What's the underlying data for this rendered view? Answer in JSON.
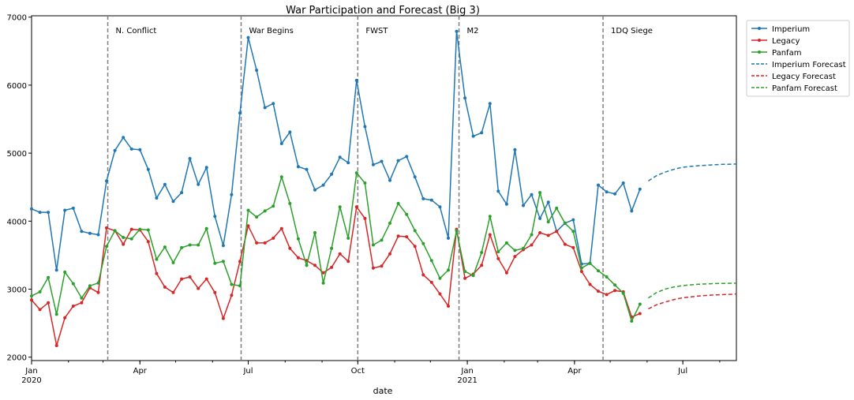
{
  "chart_data": {
    "type": "line",
    "title": "War Participation and Forecast (Big 3)",
    "xlabel": "date",
    "ylabel": "",
    "ylim": [
      1950,
      7020
    ],
    "x_range": [
      "2020-01-01",
      "2021-08-15"
    ],
    "x_ticks": [
      {
        "date": "2020-01-01",
        "label": "Jan",
        "sublabel": "2020"
      },
      {
        "date": "2020-04-01",
        "label": "Apr",
        "sublabel": ""
      },
      {
        "date": "2020-07-01",
        "label": "Jul",
        "sublabel": ""
      },
      {
        "date": "2020-10-01",
        "label": "Oct",
        "sublabel": ""
      },
      {
        "date": "2021-01-01",
        "label": "Jan",
        "sublabel": "2021"
      },
      {
        "date": "2021-04-01",
        "label": "Apr",
        "sublabel": ""
      },
      {
        "date": "2021-07-01",
        "label": "Jul",
        "sublabel": ""
      }
    ],
    "y_ticks": [
      2000,
      3000,
      4000,
      5000,
      6000,
      7000
    ],
    "grid": false,
    "legend_position": "outside-top-right",
    "annotations": [
      {
        "date": "2020-03-05",
        "label": "N. Conflict"
      },
      {
        "date": "2020-06-25",
        "label": "War Begins"
      },
      {
        "date": "2020-10-01",
        "label": "FWST"
      },
      {
        "date": "2020-12-25",
        "label": "M2"
      },
      {
        "date": "2021-04-25",
        "label": "1DQ Siege"
      }
    ],
    "dates": [
      "2020-01-01",
      "2020-01-08",
      "2020-01-15",
      "2020-01-22",
      "2020-01-29",
      "2020-02-05",
      "2020-02-12",
      "2020-02-19",
      "2020-02-26",
      "2020-03-04",
      "2020-03-11",
      "2020-03-18",
      "2020-03-25",
      "2020-04-01",
      "2020-04-08",
      "2020-04-15",
      "2020-04-22",
      "2020-04-29",
      "2020-05-06",
      "2020-05-13",
      "2020-05-20",
      "2020-05-27",
      "2020-06-03",
      "2020-06-10",
      "2020-06-17",
      "2020-06-24",
      "2020-07-01",
      "2020-07-08",
      "2020-07-15",
      "2020-07-22",
      "2020-07-29",
      "2020-08-05",
      "2020-08-12",
      "2020-08-19",
      "2020-08-26",
      "2020-09-02",
      "2020-09-09",
      "2020-09-16",
      "2020-09-23",
      "2020-09-30",
      "2020-10-07",
      "2020-10-14",
      "2020-10-21",
      "2020-10-28",
      "2020-11-04",
      "2020-11-11",
      "2020-11-18",
      "2020-11-25",
      "2020-12-02",
      "2020-12-09",
      "2020-12-16",
      "2020-12-23",
      "2020-12-30",
      "2021-01-06",
      "2021-01-13",
      "2021-01-20",
      "2021-01-27",
      "2021-02-03",
      "2021-02-10",
      "2021-02-17",
      "2021-02-24",
      "2021-03-03",
      "2021-03-10",
      "2021-03-17",
      "2021-03-24",
      "2021-03-31",
      "2021-04-07",
      "2021-04-14",
      "2021-04-21",
      "2021-04-28",
      "2021-05-05",
      "2021-05-12",
      "2021-05-19",
      "2021-05-26"
    ],
    "series": [
      {
        "name": "Imperium",
        "color": "#1f77b4",
        "style": "solid-dot",
        "values": [
          4180,
          4130,
          4130,
          3280,
          4160,
          4190,
          3850,
          3820,
          3800,
          4590,
          5040,
          5230,
          5060,
          5050,
          4760,
          4340,
          4540,
          4290,
          4420,
          4920,
          4540,
          4790,
          4070,
          3640,
          4390,
          5590,
          6700,
          6220,
          5670,
          5730,
          5140,
          5310,
          4800,
          4760,
          4460,
          4530,
          4690,
          4940,
          4860,
          6070,
          5390,
          4830,
          4880,
          4600,
          4890,
          4950,
          4650,
          4330,
          4310,
          4210,
          3750,
          6790,
          5810,
          5250,
          5300,
          5730,
          4440,
          4250,
          5050,
          4230,
          4390,
          4040,
          4280,
          3850,
          3970,
          4020,
          3370,
          3380,
          4530,
          4430,
          4400,
          4560,
          4150,
          4470
        ]
      },
      {
        "name": "Legacy",
        "color": "#d62728",
        "style": "solid-dot",
        "values": [
          2840,
          2700,
          2800,
          2170,
          2580,
          2750,
          2800,
          3020,
          2950,
          3900,
          3860,
          3660,
          3880,
          3870,
          3700,
          3230,
          3030,
          2950,
          3150,
          3180,
          3010,
          3150,
          2950,
          2570,
          2910,
          3410,
          3930,
          3680,
          3680,
          3750,
          3890,
          3600,
          3460,
          3420,
          3350,
          3240,
          3320,
          3520,
          3410,
          4210,
          4040,
          3310,
          3340,
          3520,
          3780,
          3770,
          3630,
          3210,
          3100,
          2930,
          2750,
          3880,
          3160,
          3220,
          3350,
          3800,
          3450,
          3240,
          3480,
          3580,
          3650,
          3830,
          3790,
          3850,
          3660,
          3610,
          3260,
          3070,
          2970,
          2920,
          2980,
          2960,
          2590,
          2640
        ]
      },
      {
        "name": "Panfam",
        "color": "#2ca02c",
        "style": "solid-dot",
        "values": [
          2900,
          2960,
          3170,
          2630,
          3250,
          3080,
          2870,
          3050,
          3090,
          3630,
          3860,
          3760,
          3740,
          3880,
          3870,
          3440,
          3620,
          3390,
          3610,
          3650,
          3650,
          3890,
          3380,
          3410,
          3070,
          3050,
          4160,
          4060,
          4150,
          4220,
          4650,
          4260,
          3740,
          3350,
          3830,
          3090,
          3600,
          4210,
          3750,
          4710,
          4560,
          3650,
          3720,
          3970,
          4260,
          4100,
          3860,
          3670,
          3420,
          3160,
          3280,
          3860,
          3260,
          3200,
          3540,
          4070,
          3550,
          3680,
          3570,
          3600,
          3800,
          4420,
          3990,
          4190,
          3970,
          3850,
          3310,
          3380,
          3270,
          3180,
          3060,
          2940,
          2530,
          2780
        ]
      },
      {
        "name": "Imperium Forecast",
        "color": "#1f77b4",
        "style": "dashed",
        "x": [
          "2021-06-02",
          "2021-06-09",
          "2021-06-16",
          "2021-06-23",
          "2021-06-30",
          "2021-07-07",
          "2021-07-14",
          "2021-07-21",
          "2021-07-28",
          "2021-08-04",
          "2021-08-11",
          "2021-08-15"
        ],
        "values": [
          4590,
          4670,
          4720,
          4760,
          4790,
          4805,
          4815,
          4823,
          4830,
          4835,
          4838,
          4840
        ]
      },
      {
        "name": "Legacy Forecast",
        "color": "#d62728",
        "style": "dashed",
        "x": [
          "2021-06-02",
          "2021-06-09",
          "2021-06-16",
          "2021-06-23",
          "2021-06-30",
          "2021-07-07",
          "2021-07-14",
          "2021-07-21",
          "2021-07-28",
          "2021-08-04",
          "2021-08-11",
          "2021-08-15"
        ],
        "values": [
          2710,
          2770,
          2810,
          2845,
          2870,
          2885,
          2898,
          2908,
          2915,
          2920,
          2925,
          2930
        ]
      },
      {
        "name": "Panfam Forecast",
        "color": "#2ca02c",
        "style": "dashed",
        "x": [
          "2021-06-02",
          "2021-06-09",
          "2021-06-16",
          "2021-06-23",
          "2021-06-30",
          "2021-07-07",
          "2021-07-14",
          "2021-07-21",
          "2021-07-28",
          "2021-08-04",
          "2021-08-11",
          "2021-08-15"
        ],
        "values": [
          2870,
          2950,
          3000,
          3030,
          3050,
          3063,
          3072,
          3078,
          3082,
          3085,
          3087,
          3088
        ]
      }
    ]
  }
}
